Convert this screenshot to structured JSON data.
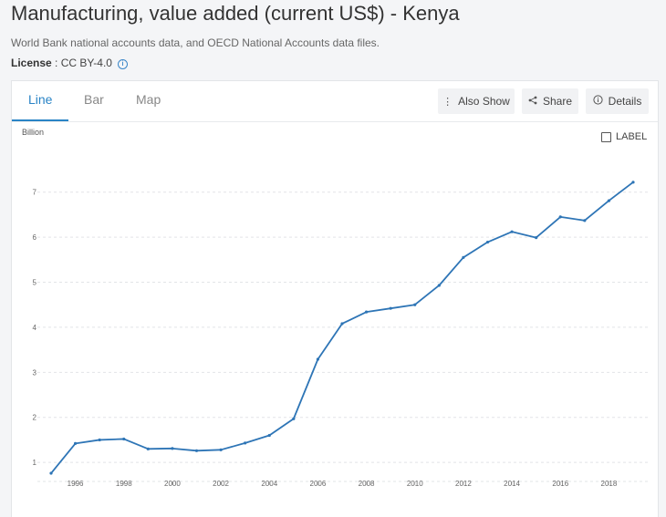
{
  "page": {
    "title": "Manufacturing, value added (current US$) - Kenya",
    "source": "World Bank national accounts data, and OECD National Accounts data files.",
    "license_label": "License",
    "license_value": " : CC BY-4.0",
    "info_icon": "info-icon"
  },
  "tabs": [
    {
      "label": "Line",
      "active": true
    },
    {
      "label": "Bar",
      "active": false
    },
    {
      "label": "Map",
      "active": false
    }
  ],
  "actions": {
    "also_show": {
      "label": "Also Show",
      "icon": "vertical-dots-icon"
    },
    "share": {
      "label": "Share",
      "icon": "share-icon"
    },
    "details": {
      "label": "Details",
      "icon": "info-circle-icon"
    }
  },
  "label_toggle": {
    "label": "LABEL",
    "checked": false
  },
  "chart_data": {
    "type": "line",
    "ylabel": "Billion",
    "x": [
      1995,
      1996,
      1997,
      1998,
      1999,
      2000,
      2001,
      2002,
      2003,
      2004,
      2005,
      2006,
      2007,
      2008,
      2009,
      2010,
      2011,
      2012,
      2013,
      2014,
      2015,
      2016,
      2017,
      2018,
      2019
    ],
    "x_tick_labels": [
      "1996",
      "1998",
      "2000",
      "2002",
      "2004",
      "2006",
      "2008",
      "2010",
      "2012",
      "2014",
      "2016",
      "2018"
    ],
    "y_tick_labels": [
      "1",
      "2",
      "3",
      "4",
      "5",
      "6",
      "7"
    ],
    "ylim": [
      0.74,
      7.5
    ],
    "grid": true,
    "series": [
      {
        "color": "#2e75b6",
        "values": [
          0.76,
          1.42,
          1.5,
          1.52,
          1.3,
          1.31,
          1.26,
          1.28,
          1.43,
          1.6,
          1.97,
          3.29,
          4.08,
          4.34,
          4.42,
          4.5,
          4.93,
          5.55,
          5.89,
          6.12,
          5.99,
          6.45,
          6.37,
          6.81,
          7.22
        ]
      }
    ]
  }
}
